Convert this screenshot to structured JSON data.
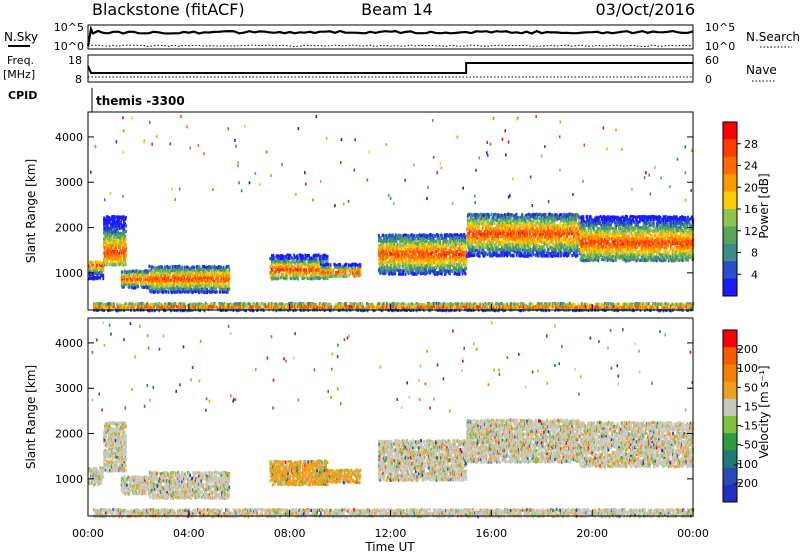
{
  "header": {
    "station": "Blackstone (fitACF)",
    "beam": "Beam 14",
    "date": "03/Oct/2016"
  },
  "status_panels": {
    "nsky_label": "N.Sky",
    "nsearch_label": "N.Search",
    "freq_label": "Freq.",
    "freq_unit": "[MHz]",
    "nave_label": "Nave",
    "cpid_label": "CPID",
    "cpid_text": "themis -3300",
    "noise_ticks": [
      "10^5",
      "10^0"
    ],
    "freq_ticks": [
      "18",
      "8"
    ],
    "nave_ticks": [
      "60",
      "0"
    ]
  },
  "chart_data": [
    {
      "type": "heatmap",
      "name": "power",
      "ylabel": "Slant Range [km]",
      "ylim": [
        180,
        4550
      ],
      "yticks": [
        1000,
        2000,
        3000,
        4000
      ],
      "xlim": [
        0,
        24
      ],
      "colorbar": {
        "label": "Power [dB]",
        "ticks": [
          "4",
          "8",
          "12",
          "16",
          "20",
          "24",
          "28"
        ],
        "colors": [
          "#1a1aff",
          "#2850c8",
          "#3d8a8a",
          "#5aa55a",
          "#8cc850",
          "#ffcc00",
          "#ff9900",
          "#ff6a00",
          "#ff3c00",
          "#ff0000"
        ]
      }
    },
    {
      "type": "heatmap",
      "name": "velocity",
      "ylabel": "Slant Range [km]",
      "ylim": [
        180,
        4550
      ],
      "yticks": [
        1000,
        2000,
        3000,
        4000
      ],
      "xlim": [
        0,
        24
      ],
      "colorbar": {
        "label": "Velocity [m s⁻¹]",
        "ticks": [
          "200",
          "100",
          "50",
          "15",
          "-15",
          "-50",
          "-100",
          "-200"
        ],
        "colors": [
          "#2030c0",
          "#2a4ab8",
          "#1f7a7a",
          "#2f9a3f",
          "#7ec040",
          "#c8c8c0",
          "#f0a020",
          "#f57f00",
          "#f85a00",
          "#ff0000"
        ]
      }
    }
  ],
  "x_axis": {
    "label": "Time UT",
    "ticks": [
      "00:00",
      "04:00",
      "08:00",
      "12:00",
      "16:00",
      "20:00",
      "00:00"
    ]
  }
}
